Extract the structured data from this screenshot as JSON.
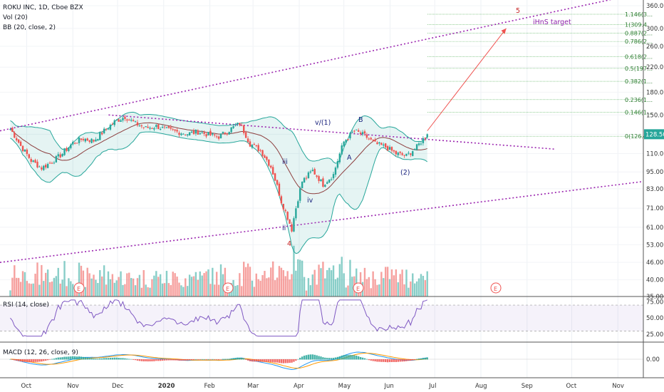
{
  "header": {
    "title": "ROKU INC, 1D, Cboe BZX",
    "volume": "Vol (20)",
    "bollinger": "BB (20, close, 2)"
  },
  "chart_data": {
    "type": "candlestick",
    "symbol": "ROKU INC",
    "interval": "1D",
    "exchange": "Cboe BZX",
    "price_axis": {
      "scale": "log",
      "ticks": [
        35,
        40,
        46,
        53,
        61,
        71,
        83,
        95,
        110,
        128.5,
        150,
        180,
        220,
        260,
        300,
        360
      ]
    },
    "price_axis_labels": [
      "360.00",
      "300.00",
      "260.00",
      "220.00",
      "180.00",
      "150.00",
      "128.50",
      "110.00",
      "95.00",
      "83.00",
      "71.00",
      "61.00",
      "53.00",
      "46.00",
      "40.00",
      "35.00"
    ],
    "last_price": "128.50",
    "time_labels": [
      "Oct",
      "Nov",
      "Dec",
      "2020",
      "Feb",
      "Mar",
      "Apr",
      "May",
      "Jun",
      "Jul",
      "Aug",
      "Sep",
      "Oct",
      "Nov"
    ],
    "close_series": [
      {
        "d": "2019-09-20",
        "c": 134
      },
      {
        "d": "2019-09-27",
        "c": 117
      },
      {
        "d": "2019-10-04",
        "c": 104
      },
      {
        "d": "2019-10-11",
        "c": 98
      },
      {
        "d": "2019-10-18",
        "c": 103
      },
      {
        "d": "2019-10-25",
        "c": 110
      },
      {
        "d": "2019-11-01",
        "c": 120
      },
      {
        "d": "2019-11-08",
        "c": 124
      },
      {
        "d": "2019-11-15",
        "c": 122
      },
      {
        "d": "2019-11-22",
        "c": 132
      },
      {
        "d": "2019-11-29",
        "c": 142
      },
      {
        "d": "2019-12-06",
        "c": 148
      },
      {
        "d": "2019-12-13",
        "c": 140
      },
      {
        "d": "2019-12-20",
        "c": 135
      },
      {
        "d": "2019-12-27",
        "c": 137
      },
      {
        "d": "2020-01-03",
        "c": 133
      },
      {
        "d": "2020-01-10",
        "c": 131
      },
      {
        "d": "2020-01-17",
        "c": 129
      },
      {
        "d": "2020-01-24",
        "c": 131
      },
      {
        "d": "2020-01-31",
        "c": 128
      },
      {
        "d": "2020-02-07",
        "c": 126
      },
      {
        "d": "2020-02-14",
        "c": 133
      },
      {
        "d": "2020-02-21",
        "c": 140
      },
      {
        "d": "2020-02-28",
        "c": 119
      },
      {
        "d": "2020-03-06",
        "c": 113
      },
      {
        "d": "2020-03-13",
        "c": 99
      },
      {
        "d": "2020-03-20",
        "c": 75
      },
      {
        "d": "2020-03-27",
        "c": 60
      },
      {
        "d": "2020-04-03",
        "c": 88
      },
      {
        "d": "2020-04-10",
        "c": 96
      },
      {
        "d": "2020-04-17",
        "c": 86
      },
      {
        "d": "2020-04-24",
        "c": 93
      },
      {
        "d": "2020-05-01",
        "c": 121
      },
      {
        "d": "2020-05-08",
        "c": 132
      },
      {
        "d": "2020-05-15",
        "c": 127
      },
      {
        "d": "2020-05-22",
        "c": 119
      },
      {
        "d": "2020-05-29",
        "c": 116
      },
      {
        "d": "2020-06-05",
        "c": 110
      },
      {
        "d": "2020-06-12",
        "c": 108
      },
      {
        "d": "2020-06-19",
        "c": 116
      },
      {
        "d": "2020-06-26",
        "c": 128.5
      }
    ],
    "fib_levels": [
      {
        "ratio": "1.146",
        "text": "1.146(3…"
      },
      {
        "ratio": "1",
        "text": "1(309.4"
      },
      {
        "ratio": "0.887",
        "text": "0.887(2…"
      },
      {
        "ratio": "0.786",
        "text": "0.786(2…"
      },
      {
        "ratio": "0.618",
        "text": "0.618(2…"
      },
      {
        "ratio": "0.5",
        "text": "0.5(197…"
      },
      {
        "ratio": "0.382",
        "text": "0.382(1…"
      },
      {
        "ratio": "0.236",
        "text": "0.236(1…"
      },
      {
        "ratio": "0.146",
        "text": "0.146(1…"
      },
      {
        "ratio": "0",
        "text": "0(126.4…"
      }
    ],
    "annotations": {
      "wave_5": "5",
      "target": "iHnS target",
      "wave_4": "4",
      "v1": "v/(1)",
      "b": "B",
      "a": "A",
      "wave_2": "(2)",
      "iii": "iii",
      "iv": "iv",
      "ii": "ii",
      "earnings": "E"
    },
    "colors": {
      "up": "#26a69a",
      "down": "#ef5350",
      "bb": "#26a69a",
      "ma": "#8d3f3f",
      "trend": "#9c27b0",
      "target_arrow": "#ef5350",
      "fib": "#4caf50",
      "rsi": "#7e57c2",
      "macd": "#2196f3",
      "signal": "#ff9800"
    }
  },
  "rsi": {
    "label": "RSI (14, close)",
    "ticks": [
      "75.00",
      "50.00",
      "25.00"
    ]
  },
  "macd": {
    "label": "MACD (12, 26, close, 9)",
    "ticks": [
      "0.00"
    ]
  }
}
